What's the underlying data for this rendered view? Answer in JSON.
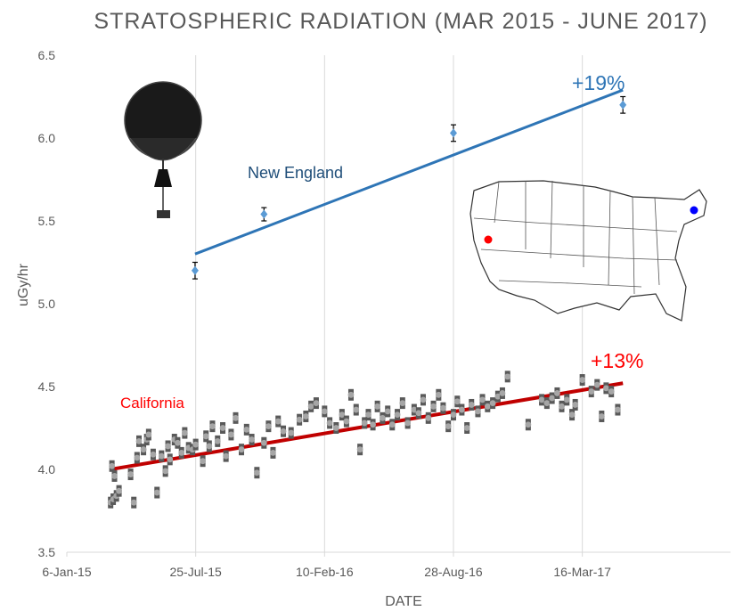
{
  "chart_data": {
    "type": "scatter",
    "title": "STRATOSPHERIC RADIATION (MAR 2015 - JUNE 2017)",
    "xlabel": "DATE",
    "ylabel": "uGy/hr",
    "ylim": [
      3.5,
      6.5
    ],
    "yticks": [
      "3.5",
      "4.0",
      "4.5",
      "5.0",
      "5.5",
      "6.0",
      "6.5"
    ],
    "xlim": [
      "2015-01-06",
      "2017-11-01"
    ],
    "xticks": [
      {
        "date": "2015-01-06",
        "label": "6-Jan-15"
      },
      {
        "date": "2015-07-25",
        "label": "25-Jul-15"
      },
      {
        "date": "2016-02-10",
        "label": "10-Feb-16"
      },
      {
        "date": "2016-08-28",
        "label": "28-Aug-16"
      },
      {
        "date": "2017-03-16",
        "label": "16-Mar-17"
      }
    ],
    "grid": "vertical",
    "series": [
      {
        "name": "New England",
        "color": "#5b9bd5",
        "trend_color": "#2e75b6",
        "change_label": "+19%",
        "points": [
          {
            "x": "2015-07-24",
            "y": 5.2,
            "err": 0.05
          },
          {
            "x": "2015-11-08",
            "y": 5.54,
            "err": 0.04
          },
          {
            "x": "2016-08-28",
            "y": 6.03,
            "err": 0.05
          },
          {
            "x": "2017-05-18",
            "y": 6.2,
            "err": 0.05
          }
        ],
        "trend": [
          {
            "x": "2015-07-24",
            "y": 5.3
          },
          {
            "x": "2017-05-18",
            "y": 6.29
          }
        ]
      },
      {
        "name": "California",
        "color": "#a6a6a6",
        "trend_color": "#c00000",
        "change_label": "+13%",
        "points": [
          {
            "x": "2015-03-15",
            "y": 3.8
          },
          {
            "x": "2015-03-17",
            "y": 4.02
          },
          {
            "x": "2015-03-19",
            "y": 3.82
          },
          {
            "x": "2015-03-21",
            "y": 3.96
          },
          {
            "x": "2015-03-24",
            "y": 3.84
          },
          {
            "x": "2015-03-28",
            "y": 3.87
          },
          {
            "x": "2015-04-15",
            "y": 3.97
          },
          {
            "x": "2015-04-20",
            "y": 3.8
          },
          {
            "x": "2015-04-25",
            "y": 4.07
          },
          {
            "x": "2015-04-28",
            "y": 4.17
          },
          {
            "x": "2015-05-05",
            "y": 4.12
          },
          {
            "x": "2015-05-10",
            "y": 4.18
          },
          {
            "x": "2015-05-13",
            "y": 4.21
          },
          {
            "x": "2015-05-20",
            "y": 4.09
          },
          {
            "x": "2015-05-26",
            "y": 3.86
          },
          {
            "x": "2015-06-02",
            "y": 4.08
          },
          {
            "x": "2015-06-08",
            "y": 3.99
          },
          {
            "x": "2015-06-12",
            "y": 4.14
          },
          {
            "x": "2015-06-15",
            "y": 4.06
          },
          {
            "x": "2015-06-22",
            "y": 4.18
          },
          {
            "x": "2015-06-27",
            "y": 4.16
          },
          {
            "x": "2015-07-03",
            "y": 4.1
          },
          {
            "x": "2015-07-08",
            "y": 4.22
          },
          {
            "x": "2015-07-14",
            "y": 4.13
          },
          {
            "x": "2015-07-20",
            "y": 4.12
          },
          {
            "x": "2015-07-25",
            "y": 4.15
          },
          {
            "x": "2015-08-05",
            "y": 4.05
          },
          {
            "x": "2015-08-10",
            "y": 4.2
          },
          {
            "x": "2015-08-15",
            "y": 4.14
          },
          {
            "x": "2015-08-20",
            "y": 4.26
          },
          {
            "x": "2015-08-28",
            "y": 4.17
          },
          {
            "x": "2015-09-05",
            "y": 4.25
          },
          {
            "x": "2015-09-10",
            "y": 4.08
          },
          {
            "x": "2015-09-18",
            "y": 4.21
          },
          {
            "x": "2015-09-25",
            "y": 4.31
          },
          {
            "x": "2015-10-04",
            "y": 4.12
          },
          {
            "x": "2015-10-12",
            "y": 4.24
          },
          {
            "x": "2015-10-20",
            "y": 4.18
          },
          {
            "x": "2015-10-28",
            "y": 3.98
          },
          {
            "x": "2015-11-08",
            "y": 4.16
          },
          {
            "x": "2015-11-15",
            "y": 4.26
          },
          {
            "x": "2015-11-22",
            "y": 4.1
          },
          {
            "x": "2015-11-30",
            "y": 4.29
          },
          {
            "x": "2015-12-08",
            "y": 4.23
          },
          {
            "x": "2015-12-20",
            "y": 4.22
          },
          {
            "x": "2016-01-02",
            "y": 4.3
          },
          {
            "x": "2016-01-12",
            "y": 4.32
          },
          {
            "x": "2016-01-20",
            "y": 4.38
          },
          {
            "x": "2016-01-28",
            "y": 4.4
          },
          {
            "x": "2016-02-10",
            "y": 4.35
          },
          {
            "x": "2016-02-18",
            "y": 4.28
          },
          {
            "x": "2016-02-28",
            "y": 4.25
          },
          {
            "x": "2016-03-08",
            "y": 4.33
          },
          {
            "x": "2016-03-15",
            "y": 4.29
          },
          {
            "x": "2016-03-22",
            "y": 4.45
          },
          {
            "x": "2016-03-30",
            "y": 4.36
          },
          {
            "x": "2016-04-05",
            "y": 4.12
          },
          {
            "x": "2016-04-12",
            "y": 4.28
          },
          {
            "x": "2016-04-18",
            "y": 4.33
          },
          {
            "x": "2016-04-25",
            "y": 4.27
          },
          {
            "x": "2016-05-02",
            "y": 4.38
          },
          {
            "x": "2016-05-10",
            "y": 4.31
          },
          {
            "x": "2016-05-18",
            "y": 4.35
          },
          {
            "x": "2016-05-25",
            "y": 4.27
          },
          {
            "x": "2016-06-02",
            "y": 4.33
          },
          {
            "x": "2016-06-10",
            "y": 4.4
          },
          {
            "x": "2016-06-18",
            "y": 4.28
          },
          {
            "x": "2016-06-28",
            "y": 4.36
          },
          {
            "x": "2016-07-05",
            "y": 4.34
          },
          {
            "x": "2016-07-12",
            "y": 4.42
          },
          {
            "x": "2016-07-20",
            "y": 4.31
          },
          {
            "x": "2016-07-28",
            "y": 4.38
          },
          {
            "x": "2016-08-05",
            "y": 4.45
          },
          {
            "x": "2016-08-12",
            "y": 4.37
          },
          {
            "x": "2016-08-20",
            "y": 4.26
          },
          {
            "x": "2016-08-28",
            "y": 4.33
          },
          {
            "x": "2016-09-03",
            "y": 4.41
          },
          {
            "x": "2016-09-10",
            "y": 4.36
          },
          {
            "x": "2016-09-18",
            "y": 4.25
          },
          {
            "x": "2016-09-25",
            "y": 4.39
          },
          {
            "x": "2016-10-05",
            "y": 4.35
          },
          {
            "x": "2016-10-12",
            "y": 4.42
          },
          {
            "x": "2016-10-20",
            "y": 4.38
          },
          {
            "x": "2016-10-28",
            "y": 4.4
          },
          {
            "x": "2016-11-05",
            "y": 4.44
          },
          {
            "x": "2016-11-12",
            "y": 4.46
          },
          {
            "x": "2016-11-20",
            "y": 4.56
          },
          {
            "x": "2016-12-22",
            "y": 4.27
          },
          {
            "x": "2017-01-12",
            "y": 4.42
          },
          {
            "x": "2017-01-20",
            "y": 4.4
          },
          {
            "x": "2017-01-28",
            "y": 4.43
          },
          {
            "x": "2017-02-05",
            "y": 4.46
          },
          {
            "x": "2017-02-12",
            "y": 4.38
          },
          {
            "x": "2017-02-20",
            "y": 4.42
          },
          {
            "x": "2017-02-28",
            "y": 4.33
          },
          {
            "x": "2017-03-05",
            "y": 4.39
          },
          {
            "x": "2017-03-16",
            "y": 4.54
          },
          {
            "x": "2017-03-30",
            "y": 4.47
          },
          {
            "x": "2017-04-08",
            "y": 4.51
          },
          {
            "x": "2017-04-15",
            "y": 4.32
          },
          {
            "x": "2017-04-22",
            "y": 4.49
          },
          {
            "x": "2017-04-30",
            "y": 4.47
          },
          {
            "x": "2017-05-10",
            "y": 4.36
          }
        ],
        "trend": [
          {
            "x": "2015-03-15",
            "y": 4.0
          },
          {
            "x": "2017-05-18",
            "y": 4.52
          }
        ]
      }
    ]
  }
}
